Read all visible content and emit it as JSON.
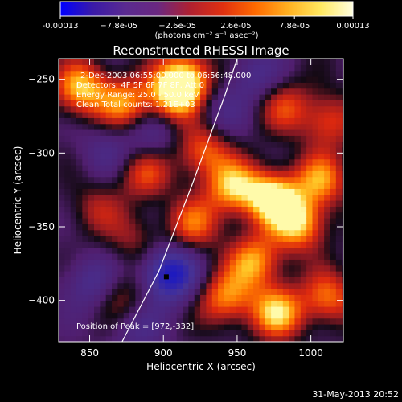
{
  "colorbar": {
    "tick_labels": [
      "-0.00013",
      "−7.8e-05",
      "−2.6e-05",
      "2.6e-05",
      "7.8e-05",
      "0.00013"
    ],
    "unit_label": "(photons cm⁻² s⁻¹ asec⁻²)",
    "range": [
      -0.00013,
      0.00013
    ],
    "colors": [
      "#0000ff",
      "#3a1aa8",
      "#5a2a90",
      "#6a2880",
      "#b02030",
      "#e03010",
      "#ff6a00",
      "#ffb020",
      "#ffe860",
      "#ffffe0"
    ]
  },
  "chart_data": {
    "type": "heatmap",
    "title": "Reconstructed RHESSI Image",
    "xlabel": "Heliocentric X (arcsec)",
    "ylabel": "Heliocentric Y (arcsec)",
    "xlim": [
      829,
      1022
    ],
    "ylim": [
      -428,
      -236
    ],
    "x_ticks": [
      850,
      900,
      950,
      1000
    ],
    "y_ticks": [
      -250,
      -300,
      -350,
      -400
    ],
    "annotations": [
      "2-Dec-2003 06:55:00.000 to 06:56:48.000",
      "Detectors: 4F 5F 6F 7F 8F, Att 0",
      "Energy Range: 25.0 - 50.0 keV",
      "Clean    Total counts: 1.21E+03"
    ],
    "peak_label": "Position of Peak = [972,-332]",
    "peak": [
      972,
      -332
    ],
    "minimum": [
      902,
      -384
    ],
    "limb_points": [
      [
        872,
        -428
      ],
      [
        897,
        -380
      ],
      [
        920,
        -320
      ],
      [
        942,
        -260
      ],
      [
        950,
        -236
      ]
    ],
    "features": [
      {
        "x": 842,
        "y": -258,
        "level": 0.85
      },
      {
        "x": 872,
        "y": -268,
        "level": 0.7
      },
      {
        "x": 905,
        "y": -262,
        "level": 0.9
      },
      {
        "x": 915,
        "y": -250,
        "level": 0.75
      },
      {
        "x": 885,
        "y": -315,
        "level": 0.55
      },
      {
        "x": 852,
        "y": -340,
        "level": 0.35
      },
      {
        "x": 878,
        "y": -360,
        "level": 0.3
      },
      {
        "x": 925,
        "y": -300,
        "level": 0.65
      },
      {
        "x": 945,
        "y": -325,
        "level": 0.8
      },
      {
        "x": 972,
        "y": -332,
        "level": 1.0
      },
      {
        "x": 990,
        "y": -350,
        "level": 0.85
      },
      {
        "x": 1005,
        "y": -320,
        "level": 0.7
      },
      {
        "x": 1010,
        "y": -280,
        "level": 0.55
      },
      {
        "x": 980,
        "y": -270,
        "level": 0.5
      },
      {
        "x": 960,
        "y": -375,
        "level": 0.75
      },
      {
        "x": 940,
        "y": -400,
        "level": 0.7
      },
      {
        "x": 975,
        "y": -410,
        "level": 0.85
      },
      {
        "x": 1010,
        "y": -400,
        "level": 0.65
      },
      {
        "x": 918,
        "y": -350,
        "level": 0.6
      },
      {
        "x": 870,
        "y": -400,
        "level": 0.4
      },
      {
        "x": 902,
        "y": -384,
        "level": -1.0
      },
      {
        "x": 860,
        "y": -300,
        "level": -0.3
      },
      {
        "x": 890,
        "y": -290,
        "level": -0.35
      },
      {
        "x": 960,
        "y": -250,
        "level": -0.4
      },
      {
        "x": 935,
        "y": -275,
        "level": -0.3
      },
      {
        "x": 850,
        "y": -390,
        "level": -0.45
      },
      {
        "x": 880,
        "y": -420,
        "level": -0.35
      }
    ]
  },
  "footer": {
    "timestamp": "31-May-2013 20:52"
  }
}
